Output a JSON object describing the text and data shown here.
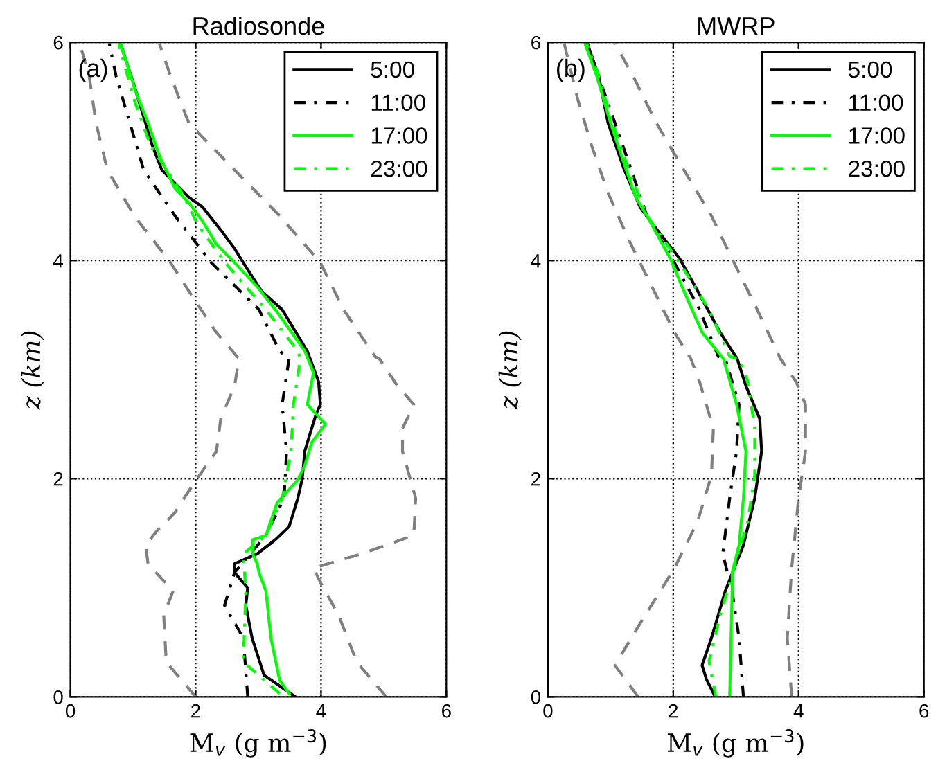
{
  "chart_data": [
    {
      "type": "line",
      "title": "Radiosonde",
      "xlabel": "M$_{v}$ (g m$^{−3}$)",
      "ylabel": "z (km)",
      "annotations": [
        "(a)"
      ],
      "xlim": [
        0,
        6
      ],
      "ylim": [
        0,
        6
      ],
      "xticks": [
        0,
        2,
        4,
        6
      ],
      "yticks": [
        0,
        2,
        4,
        6
      ],
      "grid": true,
      "legend": "top right",
      "series": [
        {
          "name": "5:00",
          "color": "#000000",
          "line_style": "solid",
          "x": [
            3.59,
            3.09,
            2.9,
            2.8,
            2.83,
            2.62,
            2.62,
            2.98,
            3.27,
            3.49,
            3.63,
            3.7,
            3.74,
            3.85,
            3.92,
            3.99,
            3.96,
            3.78,
            3.38,
            3.05,
            2.76,
            2.62,
            2.4,
            2.11,
            1.89,
            1.46,
            1.31,
            1.2,
            1.02,
            0.8
          ],
          "values": [
            0,
            0.2,
            0.54,
            0.84,
            1.0,
            1.14,
            1.22,
            1.31,
            1.44,
            1.56,
            1.82,
            2.0,
            2.25,
            2.46,
            2.59,
            2.68,
            2.89,
            3.17,
            3.55,
            3.72,
            3.98,
            4.11,
            4.28,
            4.49,
            4.58,
            4.83,
            5.05,
            5.26,
            5.6,
            5.99
          ]
        },
        {
          "name": "11:00",
          "color": "#000000",
          "line_style": "dashdot",
          "x": [
            2.83,
            2.76,
            2.46,
            2.62,
            3.12,
            3.41,
            3.45,
            3.38,
            3.49,
            3.34,
            3.01,
            2.25,
            1.67,
            1.17,
            0.95,
            0.73,
            0.62
          ],
          "values": [
            0,
            0.54,
            0.84,
            1.14,
            1.48,
            1.82,
            2.25,
            2.68,
            3.1,
            3.17,
            3.55,
            3.98,
            4.41,
            4.83,
            5.26,
            5.69,
            5.99
          ]
        },
        {
          "name": "17:00",
          "color": "#00ff00",
          "line_style": "solid",
          "x": [
            3.49,
            3.34,
            3.2,
            3.12,
            3.01,
            2.98,
            2.91,
            2.91,
            3.12,
            3.3,
            3.63,
            3.74,
            3.85,
            4.07,
            3.78,
            3.88,
            3.74,
            3.27,
            2.98,
            2.62,
            2.33,
            2.11,
            1.89,
            1.67,
            1.42,
            1.24,
            1.06,
            0.8
          ],
          "values": [
            0.03,
            0.15,
            0.54,
            0.97,
            1.14,
            1.22,
            1.31,
            1.44,
            1.48,
            1.78,
            1.99,
            2.12,
            2.33,
            2.5,
            2.68,
            2.97,
            3.17,
            3.55,
            3.76,
            3.98,
            4.15,
            4.36,
            4.53,
            4.66,
            4.96,
            5.26,
            5.52,
            5.99
          ]
        },
        {
          "name": "23:00",
          "color": "#00ff00",
          "line_style": "dashdot",
          "x": [
            3.34,
            2.76,
            2.8,
            2.76,
            3.12,
            3.38,
            3.52,
            3.56,
            3.67,
            3.63,
            3.12,
            2.47,
            2.04,
            1.78,
            1.28,
            1.02,
            0.77
          ],
          "values": [
            0.03,
            0.32,
            0.97,
            1.31,
            1.48,
            1.82,
            2.25,
            2.68,
            3.1,
            3.17,
            3.55,
            3.98,
            4.32,
            4.62,
            5.05,
            5.47,
            5.99
          ]
        },
        {
          "color": "#808080",
          "line_style": "dashed",
          "x": [
            2.0,
            1.53,
            1.49,
            1.64,
            1.24,
            1.2,
            1.38,
            1.67,
            1.96,
            2.33,
            2.4,
            2.62,
            2.69,
            2.33,
            1.89,
            1.6,
            1.02,
            0.59,
            0.41,
            0.3,
            0.15
          ],
          "values": [
            0,
            0.32,
            0.75,
            0.97,
            1.22,
            1.39,
            1.52,
            1.69,
            1.95,
            2.25,
            2.55,
            2.85,
            3.1,
            3.34,
            3.72,
            3.98,
            4.41,
            4.83,
            5.26,
            5.69,
            5.99
          ]
        },
        {
          "color": "#808080",
          "line_style": "dashed",
          "x": [
            5.04,
            4.57,
            4.28,
            3.99,
            3.88,
            4.64,
            5.48,
            5.51,
            5.3,
            5.3,
            5.48,
            5.22,
            4.93,
            4.86,
            4.36,
            3.99,
            3.34,
            2.62,
            1.89,
            1.6,
            1.42
          ],
          "values": [
            0,
            0.32,
            0.75,
            1.05,
            1.18,
            1.31,
            1.48,
            1.82,
            2.25,
            2.46,
            2.68,
            2.85,
            3.1,
            3.12,
            3.55,
            3.98,
            4.41,
            4.83,
            5.26,
            5.69,
            5.99
          ]
        }
      ]
    },
    {
      "type": "line",
      "title": "MWRP",
      "xlabel": "M$_{v}$ (g m$^{−3}$)",
      "ylabel": "z (km)",
      "annotations": [
        "(b)"
      ],
      "xlim": [
        0,
        6
      ],
      "ylim": [
        0,
        6
      ],
      "xticks": [
        0,
        2,
        4,
        6
      ],
      "yticks": [
        0,
        2,
        4,
        6
      ],
      "grid": true,
      "legend": "top right",
      "series": [
        {
          "name": "5:00",
          "color": "#000000",
          "line_style": "solid",
          "x": [
            2.67,
            2.53,
            2.46,
            2.61,
            2.83,
            3.12,
            3.3,
            3.41,
            3.38,
            3.16,
            3.02,
            2.75,
            2.39,
            2.1,
            1.69,
            1.47,
            1.22,
            0.96,
            0.81,
            0.63
          ],
          "values": [
            0,
            0.16,
            0.29,
            0.54,
            0.97,
            1.39,
            1.82,
            2.25,
            2.55,
            2.85,
            3.1,
            3.34,
            3.72,
            4.02,
            4.32,
            4.49,
            4.83,
            5.26,
            5.69,
            5.99
          ]
        },
        {
          "name": "11:00",
          "color": "#000000",
          "line_style": "dashdot",
          "x": [
            3.12,
            3.05,
            2.94,
            2.79,
            2.9,
            3.01,
            3.05,
            2.83,
            2.72,
            2.42,
            2.02,
            1.58,
            1.33,
            1.07,
            0.81,
            0.63
          ],
          "values": [
            0,
            0.54,
            0.97,
            1.31,
            1.82,
            2.25,
            2.68,
            3.1,
            3.12,
            3.55,
            3.98,
            4.41,
            4.83,
            5.26,
            5.69,
            5.99
          ]
        },
        {
          "name": "17:00",
          "color": "#00ff00",
          "line_style": "solid",
          "x": [
            2.9,
            2.94,
            2.94,
            3.05,
            3.12,
            3.16,
            3.01,
            2.8,
            2.46,
            2.17,
            1.95,
            1.58,
            1.4,
            1.25,
            1.0,
            0.78,
            0.59
          ],
          "values": [
            0,
            0.97,
            1.14,
            1.39,
            1.82,
            2.25,
            2.68,
            3.1,
            3.34,
            3.72,
            4.02,
            4.41,
            4.58,
            4.83,
            5.26,
            5.69,
            5.99
          ]
        },
        {
          "name": "23:00",
          "color": "#00ff00",
          "line_style": "dashdot",
          "x": [
            2.68,
            2.57,
            2.75,
            2.97,
            3.19,
            3.3,
            3.3,
            3.19,
            3.05,
            2.9,
            2.57,
            2.1,
            1.58,
            1.29,
            1.03,
            0.81,
            0.62
          ],
          "values": [
            0,
            0.33,
            0.75,
            1.18,
            1.61,
            2.03,
            2.46,
            2.89,
            3.1,
            3.12,
            3.55,
            3.98,
            4.41,
            4.83,
            5.26,
            5.69,
            5.99
          ]
        },
        {
          "color": "#808080",
          "line_style": "dashed",
          "x": [
            1.44,
            1.07,
            1.51,
            2.02,
            2.39,
            2.61,
            2.64,
            2.42,
            2.28,
            2.02,
            1.66,
            1.29,
            0.96,
            0.7,
            0.48,
            0.26
          ],
          "values": [
            0,
            0.29,
            0.71,
            1.18,
            1.61,
            2.03,
            2.46,
            2.89,
            3.1,
            3.34,
            3.76,
            4.19,
            4.62,
            5.05,
            5.47,
            5.99
          ]
        },
        {
          "color": "#808080",
          "line_style": "dashed",
          "x": [
            3.89,
            3.82,
            3.89,
            4.0,
            4.11,
            4.11,
            3.96,
            3.71,
            3.34,
            2.97,
            2.61,
            2.17,
            1.73,
            1.36,
            1.07
          ],
          "values": [
            0,
            0.54,
            1.18,
            1.82,
            2.25,
            2.68,
            2.89,
            3.1,
            3.55,
            3.98,
            4.41,
            4.83,
            5.26,
            5.69,
            5.99
          ]
        }
      ]
    }
  ]
}
